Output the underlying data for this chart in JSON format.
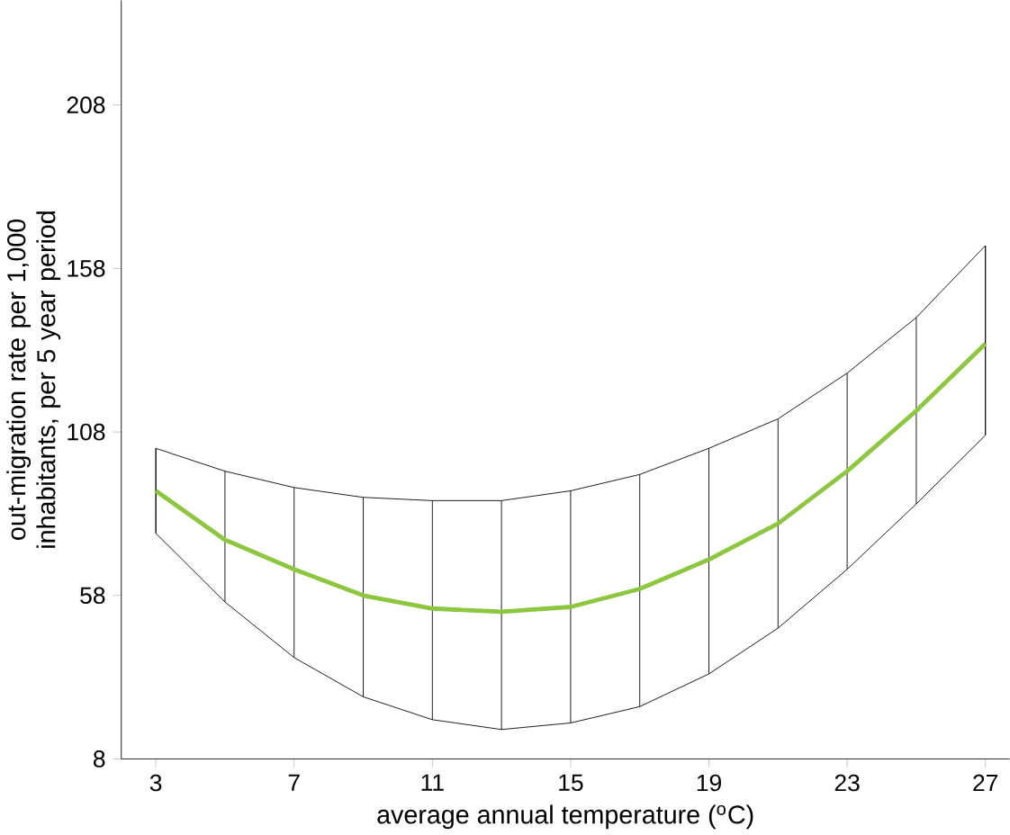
{
  "chart_data": {
    "type": "line",
    "xlabel": "average annual temperature ($^{o}$C)",
    "ylabel": "out-migration rate per 1,000 inhabitants, per 5 year period",
    "x": [
      3,
      5,
      7,
      9,
      11,
      13,
      15,
      17,
      19,
      21,
      23,
      25,
      27
    ],
    "series": [
      {
        "color": "#8dc63f",
        "values": [
          90,
          75,
          66,
          58,
          54,
          53,
          54.5,
          60,
          69,
          80,
          96,
          114.5,
          135
        ],
        "lower": [
          77,
          56,
          39,
          27,
          20,
          17,
          19,
          24,
          34,
          48,
          66,
          86,
          107
        ],
        "upper": [
          103,
          96,
          91,
          88,
          87,
          87,
          90,
          95,
          103,
          112,
          126,
          143,
          165
        ],
        "errors": [
          [
            77,
            103
          ],
          [
            56,
            96
          ],
          [
            39,
            91
          ],
          [
            27,
            88
          ],
          [
            20,
            87
          ],
          [
            17,
            87
          ],
          [
            19,
            90
          ],
          [
            24,
            95
          ],
          [
            34,
            103
          ],
          [
            48,
            112
          ],
          [
            66,
            126
          ],
          [
            86,
            143
          ],
          [
            107,
            165
          ]
        ]
      }
    ],
    "xlim": [
      2,
      27.7
    ],
    "ylim": [
      8,
      240
    ],
    "xticks": [
      3,
      7,
      11,
      15,
      19,
      23,
      27
    ],
    "yticks": [
      8,
      58,
      108,
      158,
      208
    ],
    "marker": "none",
    "line_style": "solid"
  }
}
